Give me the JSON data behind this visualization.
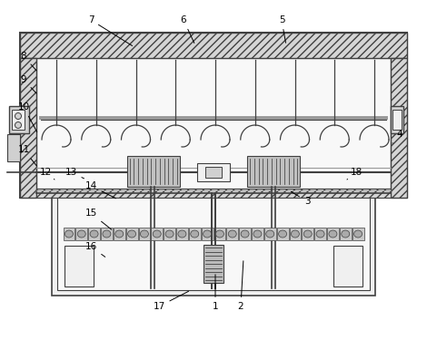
{
  "background_color": "#ffffff",
  "line_color": "#404040",
  "mid_gray": "#999999",
  "fill_light": "#f0f0f0",
  "fill_mid": "#d0d0d0",
  "hatch_fill": "#d5d5d5",
  "gear_fill": "#c0c0c0",
  "chain_fill": "#bbbbbb",
  "labels_data": [
    [
      1,
      237,
      338,
      237,
      300
    ],
    [
      2,
      265,
      338,
      268,
      285
    ],
    [
      3,
      338,
      222,
      318,
      210
    ],
    [
      4,
      440,
      148,
      432,
      158
    ],
    [
      5,
      310,
      22,
      315,
      50
    ],
    [
      6,
      202,
      22,
      215,
      50
    ],
    [
      7,
      100,
      22,
      148,
      52
    ],
    [
      8,
      26,
      62,
      42,
      80
    ],
    [
      9,
      26,
      88,
      42,
      105
    ],
    [
      10,
      26,
      118,
      42,
      148
    ],
    [
      11,
      26,
      165,
      42,
      185
    ],
    [
      12,
      50,
      190,
      60,
      198
    ],
    [
      13,
      78,
      190,
      95,
      198
    ],
    [
      14,
      100,
      205,
      130,
      220
    ],
    [
      15,
      100,
      235,
      125,
      255
    ],
    [
      16,
      100,
      272,
      118,
      285
    ],
    [
      17,
      175,
      338,
      210,
      320
    ],
    [
      18,
      392,
      190,
      382,
      198
    ]
  ]
}
